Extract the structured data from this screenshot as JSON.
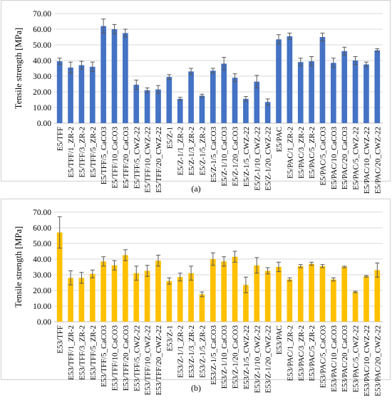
{
  "chart_data": [
    {
      "type": "bar",
      "panel_label": "(a)",
      "ylabel": "Tensile strength [MPa]",
      "ylim": [
        0,
        70
      ],
      "yticks": [
        "0.00",
        "10.00",
        "20.00",
        "30.00",
        "40.00",
        "50.00",
        "60.00",
        "70.00"
      ],
      "grid": true,
      "bar_color": "#4472c4",
      "categories": [
        "E5/TFF",
        "E5/TFF/1_ZR-2",
        "E5/TFF/3_ZR-2",
        "E5/TFF/5_ZR-2",
        "E5/TFF/5_CaCO3",
        "E5/TFF/10_CaCO3",
        "E5/TFF/20_CaCO3",
        "E5/TFF/5_CWZ-22",
        "E5/TFF/10_CWZ-22",
        "E5/TFF/20_CWZ-22",
        "E5/Z-1",
        "E5/Z-1/1_ZR-2",
        "E5/Z-1/3_ZR-2",
        "E5/Z-1/5_ZR-2",
        "E5/Z-1/5_CaCO3",
        "E5/Z-1/10_CaCO3",
        "E5/Z-1/20_CaCO3",
        "E5/Z-1/5_CWZ-22",
        "E5/Z-1/10_CWZ-22",
        "E5/Z-1/20_CWZ-22",
        "E5/PAC",
        "E5/PAC/1_ZR-2",
        "E5/PAC/3_ZR-2",
        "E5/PAC/5_ZR-2",
        "E5/PAC/5_CaCO3",
        "E5/PAC/10_CaCO3",
        "E5/PAC/20_CaCO3",
        "E5/PAC/5_CWZ-22",
        "E5/PAC/10_CWZ-22",
        "E5/PAC/20_CWZ-22"
      ],
      "values": [
        39.5,
        35.5,
        37,
        36,
        62,
        60,
        57.5,
        24.5,
        21,
        21.5,
        29.5,
        15.5,
        33,
        17.5,
        33.5,
        38,
        29,
        15.5,
        26.5,
        13.5,
        53.5,
        55.5,
        39,
        39.5,
        55,
        38.5,
        46,
        40,
        37.5,
        46.5
      ],
      "errors": [
        2,
        3.5,
        2.5,
        3,
        4.5,
        3,
        2.5,
        3,
        1.5,
        2.5,
        1.5,
        1,
        2,
        1,
        1.5,
        4,
        2.5,
        1.5,
        4,
        2,
        3,
        2,
        2.5,
        3,
        2.5,
        3,
        2.5,
        2.5,
        1.5,
        1
      ]
    },
    {
      "type": "bar",
      "panel_label": "(b)",
      "ylabel": "Tensile strength [MPa]",
      "ylim": [
        0,
        70
      ],
      "yticks": [
        "0.00",
        "10.00",
        "20.00",
        "30.00",
        "40.00",
        "50.00",
        "60.00",
        "70.00"
      ],
      "grid": true,
      "bar_color": "#ffc000",
      "categories": [
        "E53/TFF",
        "E53/TFF/1_ZR-2",
        "E53/TFF/3_ZR-2",
        "E53/TFF/5_ZR-2",
        "E53/TFF/5_CaCO3",
        "E53/TFF/10_CaCO3",
        "E53/TFF/20_CaCO3",
        "E53/TFF/5_CWZ-22",
        "E53/TFF/10_CWZ-22",
        "E53/TFF/20_CWZ-22",
        "E53/Z-1",
        "E53/Z-1/1_ZR-2",
        "E53/Z-1/3_ZR-2",
        "E53/Z-1/5_ZR-2",
        "E53/Z-1/5_CaCO3",
        "E53/Z-1/10_CaCO3",
        "E53/Z-1/20_CaCO3",
        "E53/Z-1/5_CWZ-22",
        "E53/Z-1/10_CWZ-22",
        "E53/Z-1/20_CWZ-22",
        "E53/PAC",
        "E53/PAC/1_ZR-2",
        "E53/PAC/3_ZR-2",
        "E53/PAC/5_ZR-2",
        "E53/PAC/5_CaCO3",
        "E53/PAC/10_CaCO3",
        "E53/PAC/20_CaCO3",
        "E53/PAC/5_CWZ-22",
        "E53/PAC/10_CWZ-22",
        "E53/PAC/20_CWZ-22"
      ],
      "values": [
        57,
        28,
        28,
        30.5,
        38.5,
        36,
        42.5,
        31,
        32.5,
        39,
        26,
        28.5,
        31,
        17.5,
        40,
        38.5,
        41.5,
        23.5,
        36,
        32.5,
        35,
        27,
        35.5,
        37,
        35.5,
        27,
        35,
        19,
        29,
        33
      ],
      "errors": [
        10,
        4.5,
        3.5,
        2.5,
        3,
        3,
        3.5,
        4.5,
        3.5,
        3.5,
        2,
        2.5,
        4.5,
        1.5,
        4,
        3,
        3.5,
        5,
        5,
        2,
        3,
        1,
        1,
        1,
        1,
        1,
        0.5,
        0.5,
        0.5,
        4.5
      ]
    }
  ]
}
